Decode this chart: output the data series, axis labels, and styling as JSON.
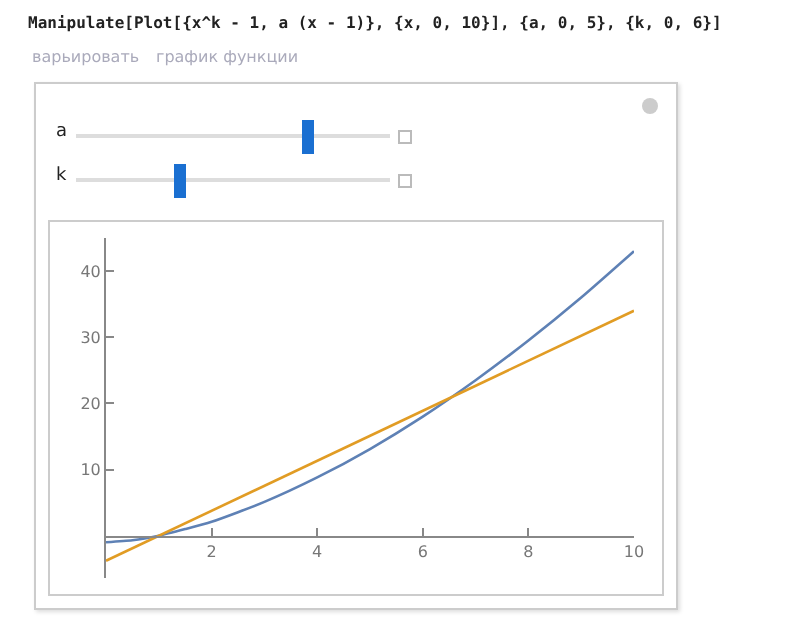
{
  "chart_data": {
    "type": "line",
    "title": "Manipulate[Plot[{x^k - 1, a (x - 1)}, {x, 0, 10}], {a, 0, 5}, {k, 0, 6}]",
    "annotations": [
      "варьировать",
      "график функции",
      "a",
      "k"
    ],
    "series": [
      {
        "color": "#5e81b5",
        "x": [
          0,
          0.5,
          1,
          1.5,
          2,
          3,
          4,
          5,
          6,
          7,
          8,
          9,
          10
        ],
        "values": [
          -1,
          -0.7,
          0,
          1,
          2.1,
          5.1,
          8.8,
          13.1,
          18,
          23.5,
          29.5,
          36,
          43
        ]
      },
      {
        "color": "#e19c24",
        "x": [
          0,
          10
        ],
        "values": [
          -3.8,
          34
        ]
      }
    ],
    "xlim": [
      0,
      10
    ],
    "ylim": [
      -6.4,
      45
    ],
    "xticks": [
      2,
      4,
      6,
      8,
      10
    ],
    "yticks": [
      10,
      20,
      30,
      40
    ],
    "grid": false
  }
}
